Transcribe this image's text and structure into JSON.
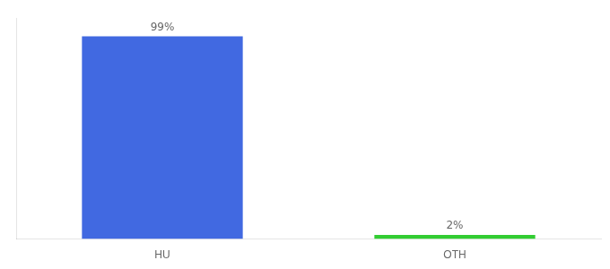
{
  "chart_data": {
    "type": "bar",
    "categories": [
      "HU",
      "OTH"
    ],
    "values": [
      99,
      2
    ],
    "value_labels": [
      "99%",
      "2%"
    ],
    "colors": [
      "#4169e1",
      "#32cd32"
    ],
    "ylim": [
      0,
      108
    ],
    "grid": false,
    "data_labels": true,
    "tick_labels": "x"
  }
}
